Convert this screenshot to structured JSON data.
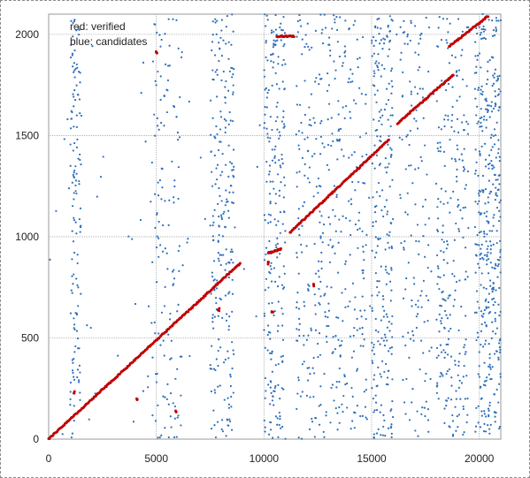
{
  "chart_data": {
    "type": "scatter",
    "title": "",
    "xlabel": "",
    "ylabel": "",
    "xlim": [
      0,
      21000
    ],
    "ylim": [
      0,
      2100
    ],
    "xticks": [
      0,
      5000,
      10000,
      15000,
      20000
    ],
    "yticks": [
      0,
      500,
      1000,
      1500,
      2000
    ],
    "grid": true,
    "annotations": [
      "red:  verified",
      "blue: candidates"
    ],
    "colors": {
      "verified": "#c00000",
      "candidates": "#2e6fba"
    },
    "series": [
      {
        "name": "verified",
        "color": "#c00000",
        "segments": [
          {
            "x": [
              0,
              8900
            ],
            "y": [
              0,
              870
            ]
          },
          {
            "x": [
              10200,
              10800
            ],
            "y": [
              920,
              940
            ]
          },
          {
            "x": [
              10600,
              11400
            ],
            "y": [
              1990,
              1990
            ]
          },
          {
            "x": [
              11200,
              15800
            ],
            "y": [
              1020,
              1480
            ]
          },
          {
            "x": [
              16200,
              18800
            ],
            "y": [
              1560,
              1800
            ]
          },
          {
            "x": [
              18600,
              20400
            ],
            "y": [
              1940,
              2090
            ]
          }
        ],
        "points": [
          {
            "x": 5000,
            "y": 1910
          },
          {
            "x": 4100,
            "y": 200
          },
          {
            "x": 1200,
            "y": 230
          },
          {
            "x": 5900,
            "y": 140
          },
          {
            "x": 10400,
            "y": 630
          },
          {
            "x": 12300,
            "y": 760
          },
          {
            "x": 7900,
            "y": 640
          },
          {
            "x": 10200,
            "y": 870
          }
        ]
      },
      {
        "name": "candidates",
        "color": "#2e6fba",
        "description": "dense vertical bands of candidate points",
        "bands": [
          {
            "x": [
              1000,
              1500
            ],
            "density": "medium"
          },
          {
            "x": [
              4800,
              6200
            ],
            "density": "medium"
          },
          {
            "x": [
              7500,
              8600
            ],
            "density": "high"
          },
          {
            "x": [
              10000,
              11000
            ],
            "density": "high"
          },
          {
            "x": [
              11500,
              14800
            ],
            "density": "very high"
          },
          {
            "x": [
              15000,
              16000
            ],
            "density": "high"
          },
          {
            "x": [
              16300,
              17800
            ],
            "density": "medium"
          },
          {
            "x": [
              18000,
              19500
            ],
            "density": "high"
          },
          {
            "x": [
              19800,
              21000
            ],
            "density": "very high"
          }
        ]
      }
    ]
  }
}
